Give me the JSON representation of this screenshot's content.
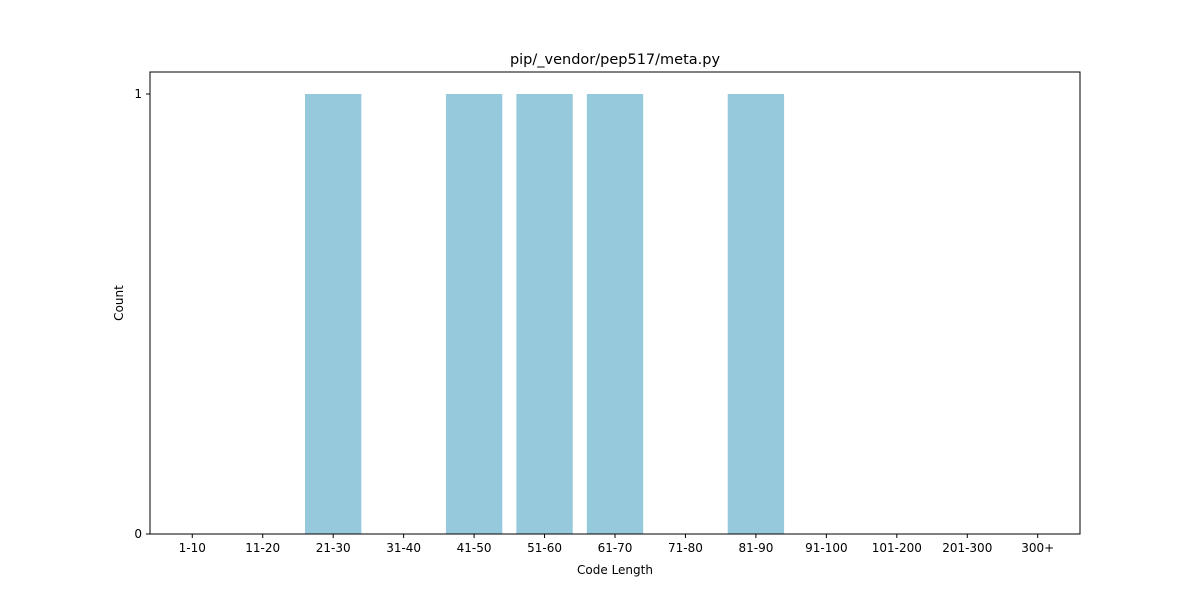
{
  "chart_data": {
    "type": "bar",
    "title": "pip/_vendor/pep517/meta.py",
    "xlabel": "Code Length",
    "ylabel": "Count",
    "categories": [
      "1-10",
      "11-20",
      "21-30",
      "31-40",
      "41-50",
      "51-60",
      "61-70",
      "71-80",
      "81-90",
      "91-100",
      "101-200",
      "201-300",
      "300+"
    ],
    "values": [
      0,
      0,
      1,
      0,
      1,
      1,
      1,
      0,
      1,
      0,
      0,
      0,
      0
    ],
    "ylim": [
      0,
      1.05
    ],
    "yticks": [
      0,
      1
    ],
    "grid": false,
    "bar_color": "#96c9dc"
  }
}
